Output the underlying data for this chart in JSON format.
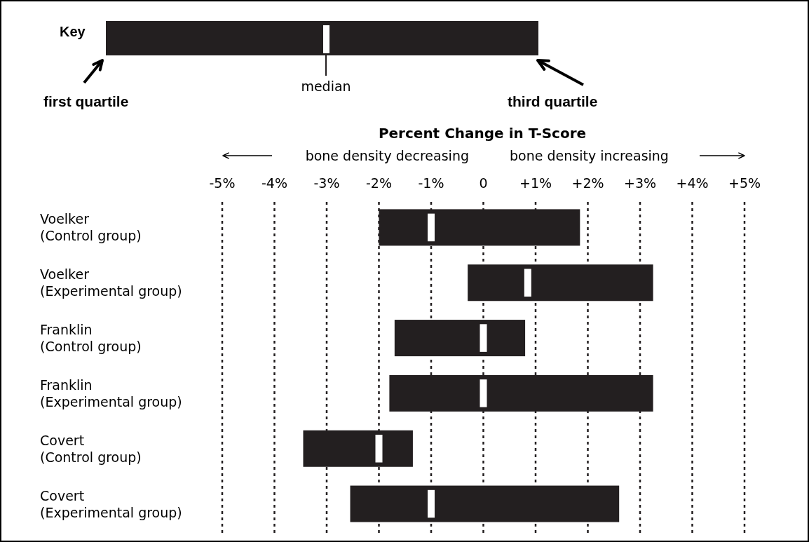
{
  "chart_data": {
    "type": "box",
    "orientation": "horizontal",
    "xlabel": "Percent Change in T-Score",
    "categories": [
      "Voelker\n(Control group)",
      "Voelker\n(Experimental group)",
      "Franklin\n(Control group)",
      "Franklin\n(Experimental group)",
      "Covert\n(Control group)",
      "Covert\n(Experimental group)"
    ],
    "boxes": [
      {
        "low": -2.0,
        "q1": -2.0,
        "median": -1.0,
        "q3": 1.85,
        "high": 1.85
      },
      {
        "low": -0.3,
        "q1": -0.3,
        "median": 0.85,
        "q3": 3.25,
        "high": 3.25
      },
      {
        "low": -1.7,
        "q1": -1.7,
        "median": 0,
        "q3": 0.8,
        "high": 0.8
      },
      {
        "low": -1.8,
        "q1": -1.8,
        "median": 0,
        "q3": 3.25,
        "high": 3.25
      },
      {
        "low": -3.45,
        "q1": -3.45,
        "median": -2.0,
        "q3": -1.35,
        "high": -1.35
      },
      {
        "low": -2.55,
        "q1": -2.55,
        "median": -1.0,
        "q3": 2.6,
        "high": 2.6
      }
    ],
    "color": "#231f20",
    "xlim": [
      -5,
      5
    ],
    "xticks": [
      {
        "value": -5,
        "label": "-5%"
      },
      {
        "value": -4,
        "label": "-4%"
      },
      {
        "value": -3,
        "label": "-3%"
      },
      {
        "value": -2,
        "label": "-2%"
      },
      {
        "value": -1,
        "label": "-1%"
      },
      0,
      {
        "value": 1,
        "label": "+1%"
      },
      {
        "value": 2,
        "label": "+2%"
      },
      {
        "value": 3,
        "label": "+3%"
      },
      {
        "value": 4,
        "label": "+4%"
      },
      {
        "value": 5,
        "label": "+5%"
      }
    ],
    "grid": "x",
    "annotations": [
      "Key",
      "median",
      "first quartile",
      "third quartile",
      "bone density decreasing",
      "bone density increasing"
    ]
  }
}
